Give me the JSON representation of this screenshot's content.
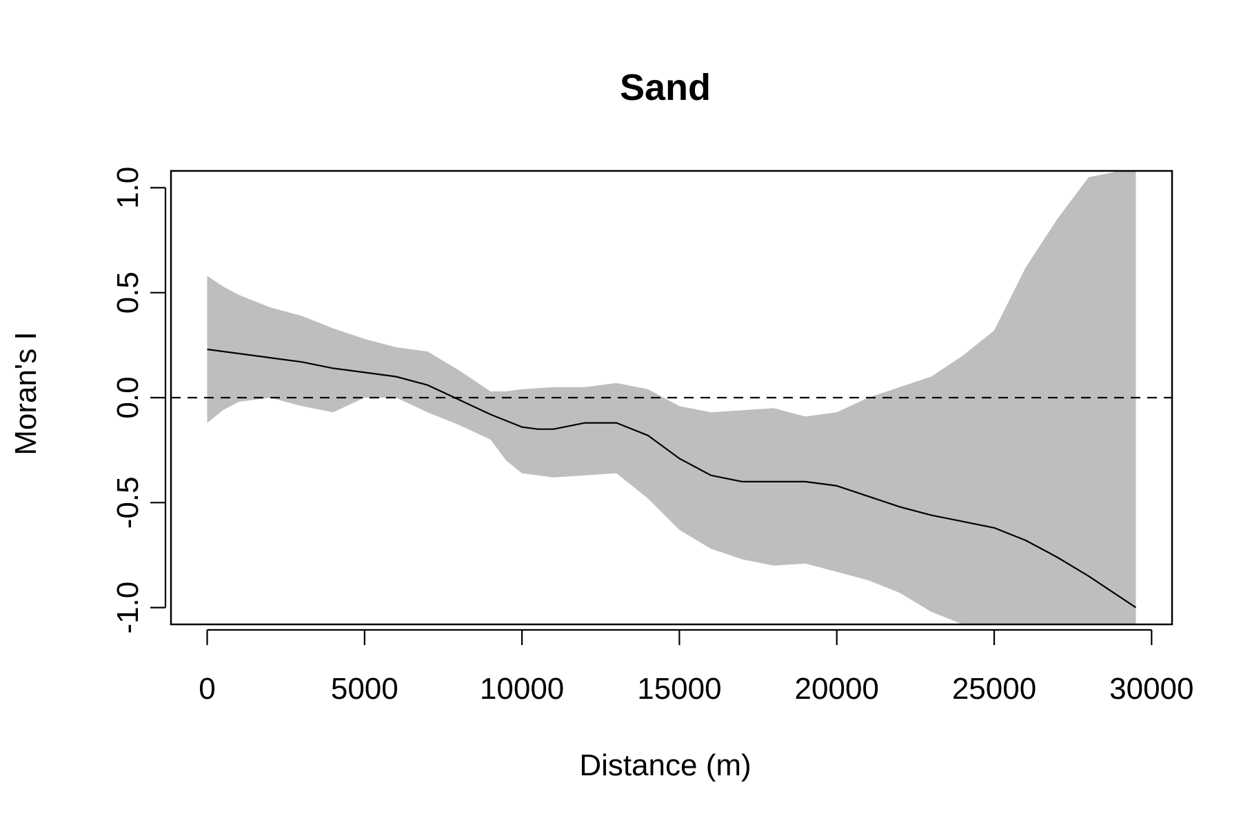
{
  "chart_data": {
    "type": "line",
    "title": "Sand",
    "xlabel": "Distance (m)",
    "ylabel": "Moran's I",
    "xlim": [
      -1150,
      30650
    ],
    "ylim": [
      -1.08,
      1.08
    ],
    "xticks": [
      0,
      5000,
      10000,
      15000,
      20000,
      25000,
      30000
    ],
    "yticks": [
      -1.0,
      -0.5,
      0.0,
      0.5,
      1.0
    ],
    "xtick_labels": [
      "0",
      "5000",
      "10000",
      "15000",
      "20000",
      "25000",
      "30000"
    ],
    "ytick_labels": [
      "-1.0",
      "-0.5",
      "0.0",
      "0.5",
      "1.0"
    ],
    "reference_line": {
      "y": 0,
      "style": "dashed",
      "color": "#000000"
    },
    "colors": {
      "band": "#bebebe",
      "line": "#000000"
    },
    "series": [
      {
        "kind": "line",
        "x": [
          0,
          1000,
          2000,
          3000,
          4000,
          5000,
          6000,
          7000,
          8000,
          9000,
          10000,
          10500,
          11000,
          12000,
          13000,
          14000,
          15000,
          16000,
          17000,
          18000,
          19000,
          20000,
          21000,
          22000,
          23000,
          24000,
          25000,
          26000,
          27000,
          28000,
          29500
        ],
        "y": [
          0.23,
          0.21,
          0.19,
          0.17,
          0.14,
          0.12,
          0.1,
          0.06,
          -0.01,
          -0.08,
          -0.14,
          -0.15,
          -0.15,
          -0.12,
          -0.12,
          -0.18,
          -0.29,
          -0.37,
          -0.4,
          -0.4,
          -0.4,
          -0.42,
          -0.47,
          -0.52,
          -0.56,
          -0.59,
          -0.62,
          -0.68,
          -0.76,
          -0.85,
          -1.0
        ]
      }
    ],
    "band": {
      "x": [
        0,
        500,
        1000,
        2000,
        3000,
        4000,
        5000,
        6000,
        7000,
        8000,
        9000,
        9500,
        10000,
        11000,
        12000,
        13000,
        14000,
        15000,
        16000,
        17000,
        18000,
        19000,
        20000,
        21000,
        22000,
        23000,
        24000,
        25000,
        26000,
        27000,
        28000,
        29000,
        29500
      ],
      "lower": [
        -0.12,
        -0.06,
        -0.02,
        0.0,
        -0.04,
        -0.07,
        0.0,
        0.0,
        -0.07,
        -0.13,
        -0.2,
        -0.3,
        -0.36,
        -0.38,
        -0.37,
        -0.36,
        -0.48,
        -0.63,
        -0.72,
        -0.77,
        -0.8,
        -0.79,
        -0.83,
        -0.87,
        -0.93,
        -1.02,
        -1.08,
        -1.08,
        -1.08,
        -1.08,
        -1.08,
        -1.08,
        -1.08
      ],
      "upper": [
        0.58,
        0.53,
        0.49,
        0.43,
        0.39,
        0.33,
        0.28,
        0.24,
        0.22,
        0.13,
        0.03,
        0.03,
        0.04,
        0.05,
        0.05,
        0.07,
        0.04,
        -0.04,
        -0.07,
        -0.06,
        -0.05,
        -0.09,
        -0.07,
        0.0,
        0.05,
        0.1,
        0.2,
        0.32,
        0.62,
        0.85,
        1.05,
        1.08,
        1.08
      ]
    }
  }
}
